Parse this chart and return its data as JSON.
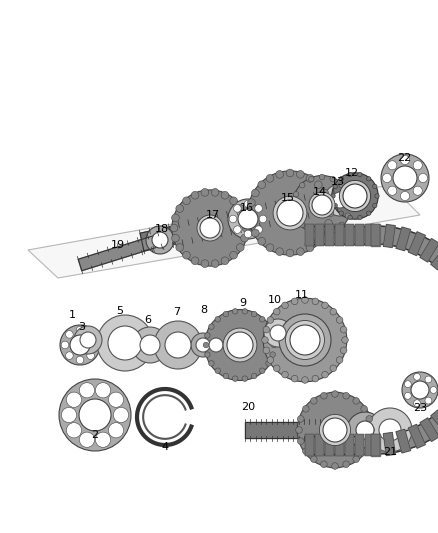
{
  "bg_color": "#ffffff",
  "lc": "#444444",
  "dc": "#222222",
  "gc": "#888888",
  "lgc": "#cccccc",
  "mgc": "#aaaaaa",
  "dgc": "#666666",
  "chain_color": "#777777",
  "chain_edge": "#333333"
}
